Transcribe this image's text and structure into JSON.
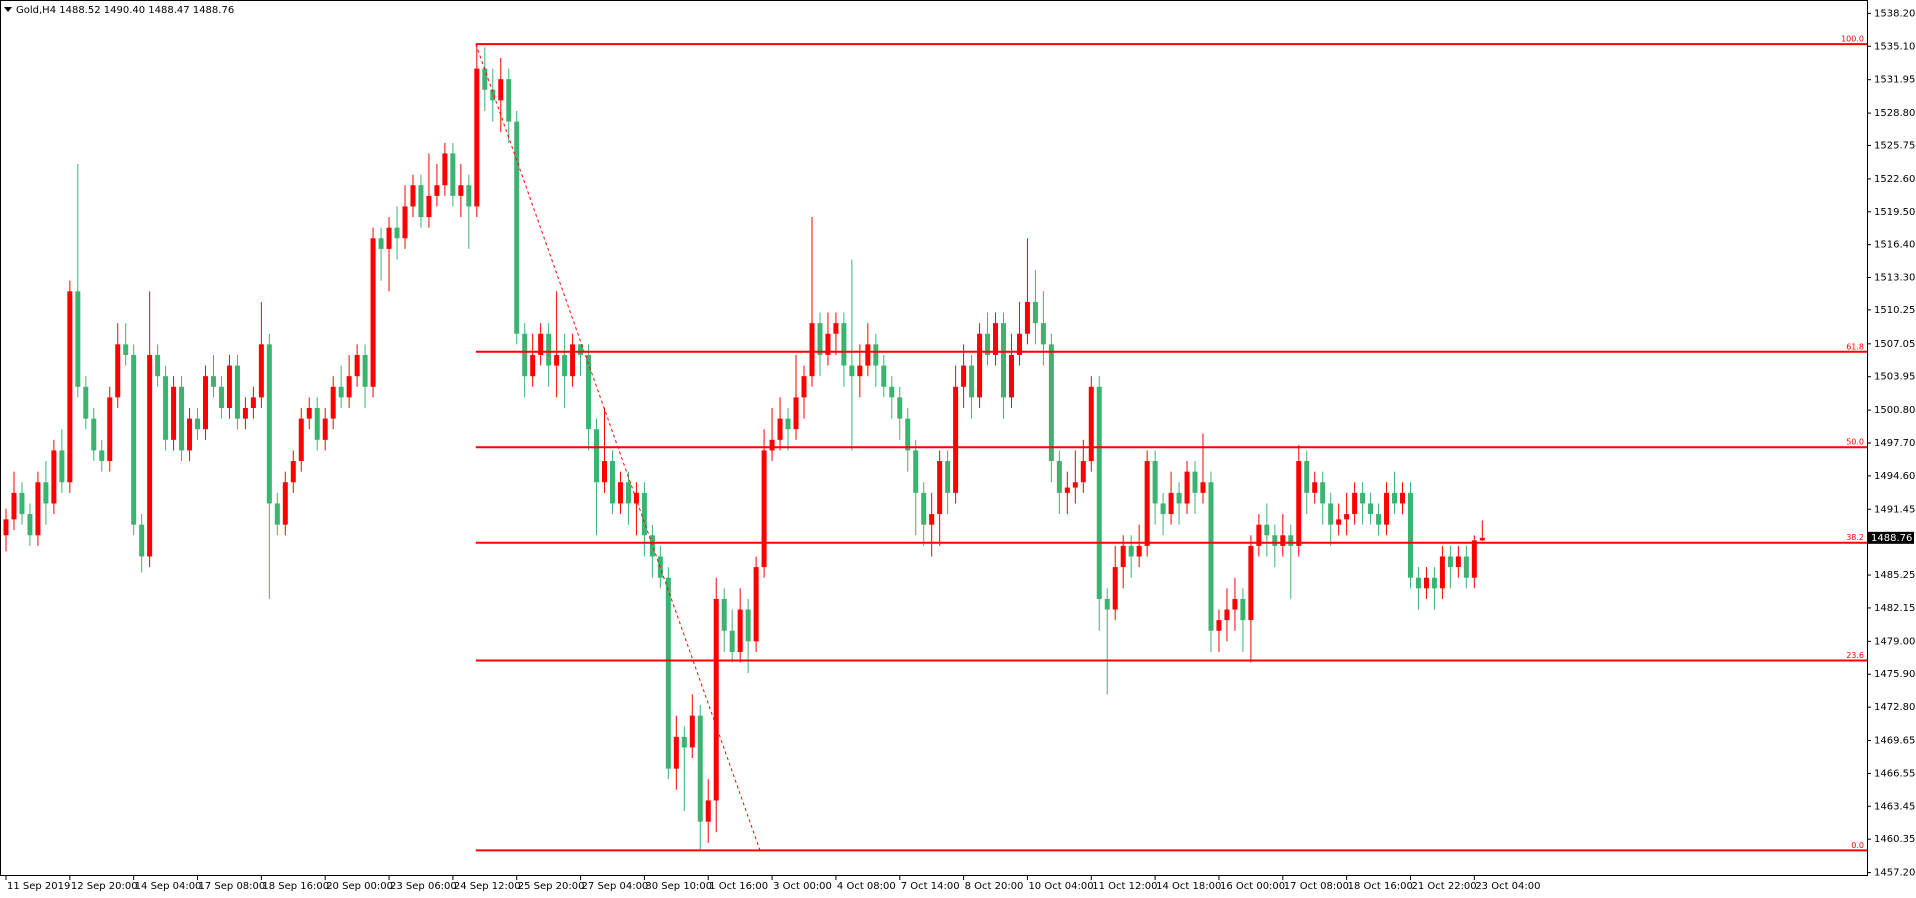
{
  "chart_data": {
    "type": "candlestick",
    "header": "Gold,H4  1488.52 1490.40 1488.47 1488.76",
    "last_price": 1488.76,
    "up_color": "#ff0000",
    "down_color": "#3cb371",
    "fib_color": "#ff0000",
    "ylim": [
      1457.2,
      1538.2
    ],
    "yticks": [
      {
        "value": 1538.2,
        "label": "1538.20"
      },
      {
        "value": 1535.1,
        "label": "1535.10"
      },
      {
        "value": 1531.95,
        "label": "1531.95"
      },
      {
        "value": 1528.8,
        "label": "1528.80"
      },
      {
        "value": 1525.75,
        "label": "1525.75"
      },
      {
        "value": 1522.6,
        "label": "1522.60"
      },
      {
        "value": 1519.5,
        "label": "1519.50"
      },
      {
        "value": 1516.4,
        "label": "1516.40"
      },
      {
        "value": 1513.3,
        "label": "1513.30"
      },
      {
        "value": 1510.25,
        "label": "1510.25"
      },
      {
        "value": 1507.05,
        "label": "1507.05"
      },
      {
        "value": 1503.95,
        "label": "1503.95"
      },
      {
        "value": 1500.8,
        "label": "1500.80"
      },
      {
        "value": 1497.7,
        "label": "1497.70"
      },
      {
        "value": 1494.6,
        "label": "1494.60"
      },
      {
        "value": 1491.45,
        "label": "1491.45"
      },
      {
        "value": 1485.25,
        "label": "1485.25"
      },
      {
        "value": 1482.15,
        "label": "1482.15"
      },
      {
        "value": 1479,
        "label": "1479.00"
      },
      {
        "value": 1475.9,
        "label": "1475.90"
      },
      {
        "value": 1472.8,
        "label": "1472.80"
      },
      {
        "value": 1469.65,
        "label": "1469.65"
      },
      {
        "value": 1466.55,
        "label": "1466.55"
      },
      {
        "value": 1463.45,
        "label": "1463.45"
      },
      {
        "value": 1460.35,
        "label": "1460.35"
      },
      {
        "value": 1457.2,
        "label": "1457.20"
      }
    ],
    "fib_levels": [
      {
        "label": "100.0",
        "price": 1535.3
      },
      {
        "label": "61.8",
        "price": 1506.3
      },
      {
        "label": "50.0",
        "price": 1497.3
      },
      {
        "label": "38.2",
        "price": 1488.3
      },
      {
        "label": "23.6",
        "price": 1477.2
      },
      {
        "label": "0.0",
        "price": 1459.3
      }
    ],
    "categories": [
      "11 Sep 2019",
      null,
      null,
      null,
      null,
      null,
      null,
      null,
      "12 Sep 20:00",
      null,
      null,
      null,
      null,
      null,
      null,
      null,
      "14 Sep 04:00",
      null,
      null,
      null,
      null,
      null,
      null,
      null,
      "17 Sep 08:00",
      null,
      null,
      null,
      null,
      null,
      null,
      null,
      "18 Sep 16:00",
      null,
      null,
      null,
      null,
      null,
      null,
      null,
      "20 Sep 00:00",
      null,
      null,
      null,
      null,
      null,
      null,
      null,
      "23 Sep 06:00",
      null,
      null,
      null,
      null,
      null,
      null,
      null,
      "24 Sep 12:00",
      null,
      null,
      null,
      null,
      null,
      null,
      null,
      "25 Sep 20:00",
      null,
      null,
      null,
      null,
      null,
      null,
      null,
      "27 Sep 04:00",
      null,
      null,
      null,
      null,
      null,
      null,
      null,
      "30 Sep 10:00",
      null,
      null,
      null,
      null,
      null,
      null,
      null,
      "1 Oct 16:00",
      null,
      null,
      null,
      null,
      null,
      null,
      null,
      "3 Oct 00:00",
      null,
      null,
      null,
      null,
      null,
      null,
      null,
      "4 Oct 08:00",
      null,
      null,
      null,
      null,
      null,
      null,
      null,
      "7 Oct 14:00",
      null,
      null,
      null,
      null,
      null,
      null,
      null,
      "8 Oct 20:00",
      null,
      null,
      null,
      null,
      null,
      null,
      null,
      "10 Oct 04:00",
      null,
      null,
      null,
      null,
      null,
      null,
      null,
      "11 Oct 12:00",
      null,
      null,
      null,
      null,
      null,
      null,
      null,
      "14 Oct 18:00",
      null,
      null,
      null,
      null,
      null,
      null,
      null,
      "16 Oct 00:00",
      null,
      null,
      null,
      null,
      null,
      null,
      null,
      "17 Oct 08:00",
      null,
      null,
      null,
      null,
      null,
      null,
      null,
      "18 Oct 16:00",
      null,
      null,
      null,
      null,
      null,
      null,
      null,
      "21 Oct 22:00",
      null,
      null,
      null,
      null,
      null,
      null,
      null,
      "23 Oct 04:00",
      null
    ],
    "open": [
      1489,
      1490.5,
      1493,
      1491,
      1489,
      1494,
      1492,
      1497,
      1494,
      1512,
      1503,
      1500,
      1497,
      1496,
      1502,
      1507,
      1506,
      1490,
      1487,
      1506,
      1504,
      1498,
      1503,
      1497,
      1500,
      1499,
      1504,
      1503,
      1501,
      1505,
      1500,
      1501,
      1502,
      1507,
      1492,
      1490,
      1494,
      1496,
      1500,
      1501,
      1498,
      1500,
      1503,
      1502,
      1504,
      1506,
      1503,
      1517,
      1516,
      1518,
      1517,
      1520,
      1522,
      1519,
      1521,
      1522,
      1525,
      1521,
      1522,
      1520,
      1533,
      1531,
      1530,
      1532,
      1528,
      1508,
      1504,
      1506,
      1508,
      1505,
      1506,
      1504,
      1507,
      1506,
      1499,
      1494,
      1496,
      1492,
      1494,
      1492,
      1493,
      1489,
      1487,
      1485,
      1467,
      1470,
      1469,
      1472,
      1462,
      1464,
      1483,
      1480,
      1478,
      1482,
      1479,
      1486,
      1497,
      1498,
      1500,
      1499,
      1502,
      1504,
      1509,
      1506,
      1508,
      1509,
      1505,
      1504,
      1505,
      1507,
      1505,
      1503,
      1502,
      1500,
      1497,
      1493,
      1490,
      1491,
      1496,
      1493,
      1503,
      1505,
      1502,
      1508,
      1506,
      1509,
      1502,
      1506,
      1508,
      1511,
      1509,
      1507,
      1496,
      1493,
      1493.5,
      1494,
      1496,
      1503,
      1483,
      1482,
      1486,
      1488,
      1487,
      1488,
      1496,
      1492,
      1491,
      1493,
      1492,
      1495,
      1493,
      1494,
      1480,
      1481,
      1482,
      1483,
      1481,
      1488,
      1490,
      1489,
      1488,
      1489,
      1488,
      1496,
      1493,
      1494,
      1492,
      1490,
      1490.5,
      1491,
      1493,
      1492,
      1491,
      1490,
      1493,
      1492,
      1493,
      1485,
      1484,
      1485,
      1484,
      1487,
      1486,
      1487,
      1485,
      1488.52
    ],
    "high": [
      1491.5,
      1495,
      1494,
      1492,
      1495,
      1496,
      1498,
      1499,
      1513,
      1524,
      1504,
      1501,
      1498,
      1503,
      1509,
      1509,
      1507,
      1491,
      1512,
      1507,
      1505,
      1504,
      1504,
      1501,
      1501,
      1505,
      1506,
      1504,
      1506,
      1506,
      1502,
      1503,
      1511,
      1508,
      1493,
      1495,
      1497,
      1501,
      1502,
      1502,
      1501,
      1504,
      1505,
      1506,
      1507,
      1507,
      1518,
      1518,
      1519,
      1520,
      1522,
      1523,
      1523,
      1525,
      1524,
      1526,
      1526,
      1524,
      1523,
      1535.3,
      1535,
      1533,
      1534,
      1533,
      1529,
      1509,
      1508,
      1509,
      1509,
      1512,
      1508,
      1508,
      1507,
      1507,
      1500,
      1501,
      1497,
      1495,
      1495,
      1494,
      1494,
      1490,
      1488,
      1486,
      1472,
      1471,
      1474,
      1473,
      1466,
      1485,
      1484,
      1482,
      1484,
      1483,
      1487,
      1499,
      1501,
      1502,
      1501,
      1506,
      1505,
      1519,
      1510,
      1510,
      1510,
      1510,
      1515,
      1507,
      1509,
      1508,
      1506,
      1504,
      1503,
      1501,
      1498,
      1494,
      1493,
      1497,
      1497,
      1505,
      1507,
      1506,
      1509,
      1510,
      1510,
      1510,
      1508,
      1511,
      1517,
      1514,
      1512,
      1508,
      1497,
      1495,
      1497,
      1498,
      1504,
      1504,
      1484,
      1488,
      1489,
      1489,
      1490,
      1497,
      1497,
      1493,
      1495,
      1494,
      1496,
      1496,
      1498.6,
      1495,
      1482,
      1484,
      1485,
      1484,
      1489,
      1491,
      1492,
      1490,
      1491,
      1490,
      1497.5,
      1497,
      1495,
      1495,
      1493,
      1492,
      1493,
      1494,
      1494,
      1493,
      1492,
      1494,
      1495,
      1494,
      1494,
      1486,
      1486,
      1486,
      1488,
      1488,
      1488,
      1488,
      1489,
      1490.4
    ],
    "low": [
      1487.5,
      1489.5,
      1490,
      1488,
      1488,
      1490,
      1491,
      1493,
      1493,
      1502,
      1499,
      1496,
      1495,
      1495,
      1501,
      1505,
      1489,
      1485.5,
      1486,
      1503,
      1497,
      1497,
      1496,
      1496,
      1498,
      1498,
      1502,
      1500,
      1500,
      1499,
      1499,
      1500,
      1501,
      1483,
      1489,
      1489,
      1493,
      1495,
      1499,
      1497,
      1497,
      1499,
      1501,
      1501,
      1503,
      1501,
      1502,
      1513,
      1512,
      1515,
      1516,
      1519,
      1518,
      1518,
      1520,
      1521,
      1520,
      1519,
      1516,
      1519,
      1529,
      1528,
      1527,
      1526,
      1507,
      1502,
      1503,
      1505,
      1503,
      1502,
      1501,
      1503,
      1504,
      1497,
      1489,
      1493,
      1491,
      1491,
      1490,
      1489,
      1487,
      1485,
      1484,
      1466,
      1465,
      1463,
      1468,
      1459.3,
      1460,
      1461,
      1478,
      1477,
      1477,
      1476,
      1478,
      1485,
      1496,
      1497,
      1497,
      1498,
      1500,
      1503,
      1504,
      1505,
      1506,
      1503,
      1497,
      1502,
      1504,
      1503,
      1502,
      1500,
      1498,
      1495,
      1489,
      1488,
      1487,
      1488,
      1491,
      1492,
      1501,
      1500,
      1501,
      1505,
      1505,
      1500,
      1501,
      1505,
      1507,
      1507,
      1505,
      1494,
      1491,
      1491,
      1492,
      1493,
      1495,
      1480,
      1474,
      1481,
      1484,
      1485,
      1486,
      1487,
      1490,
      1489,
      1490,
      1490,
      1491,
      1491,
      1492,
      1478,
      1478,
      1479,
      1480,
      1478,
      1477,
      1487,
      1487,
      1486,
      1487,
      1483,
      1487,
      1491,
      1492,
      1490,
      1488,
      1489,
      1489,
      1490,
      1490,
      1490,
      1489,
      1489,
      1491,
      1491,
      1484,
      1482,
      1483,
      1482,
      1483,
      1484,
      1485,
      1484,
      1484,
      1488.47
    ],
    "close": [
      1490.5,
      1493,
      1491,
      1489,
      1494,
      1492,
      1497,
      1494,
      1512,
      1503,
      1500,
      1497,
      1496,
      1502,
      1507,
      1506,
      1490,
      1487,
      1506,
      1504,
      1498,
      1503,
      1497,
      1500,
      1499,
      1504,
      1503,
      1501,
      1505,
      1500,
      1501,
      1502,
      1507,
      1492,
      1490,
      1494,
      1496,
      1500,
      1501,
      1498,
      1500,
      1503,
      1502,
      1504,
      1506,
      1503,
      1517,
      1516,
      1518,
      1517,
      1520,
      1522,
      1519,
      1521,
      1522,
      1525,
      1521,
      1522,
      1520,
      1533,
      1531,
      1530,
      1532,
      1528,
      1508,
      1504,
      1506,
      1508,
      1505,
      1506,
      1504,
      1507,
      1506,
      1499,
      1494,
      1496,
      1492,
      1494,
      1492,
      1493,
      1489,
      1487,
      1485,
      1467,
      1470,
      1469,
      1472,
      1462,
      1464,
      1483,
      1480,
      1478,
      1482,
      1479,
      1486,
      1497,
      1498,
      1500,
      1499,
      1502,
      1504,
      1509,
      1506,
      1508,
      1509,
      1505,
      1504,
      1505,
      1507,
      1505,
      1503,
      1502,
      1500,
      1497,
      1493,
      1490,
      1491,
      1496,
      1493,
      1503,
      1505,
      1502,
      1508,
      1506,
      1509,
      1502,
      1506,
      1508,
      1511,
      1509,
      1507,
      1496,
      1493,
      1493.5,
      1494,
      1496,
      1503,
      1483,
      1482,
      1486,
      1488,
      1487,
      1488,
      1496,
      1492,
      1491,
      1493,
      1492,
      1495,
      1493,
      1494,
      1480,
      1481,
      1482,
      1483,
      1481,
      1488,
      1490,
      1489,
      1488,
      1489,
      1488,
      1496,
      1493,
      1494,
      1492,
      1490,
      1490.5,
      1491,
      1493,
      1492,
      1491,
      1490,
      1493,
      1492,
      1493,
      1485,
      1484,
      1485,
      1484,
      1487,
      1486,
      1487,
      1485,
      1488.52,
      1488.76
    ]
  }
}
